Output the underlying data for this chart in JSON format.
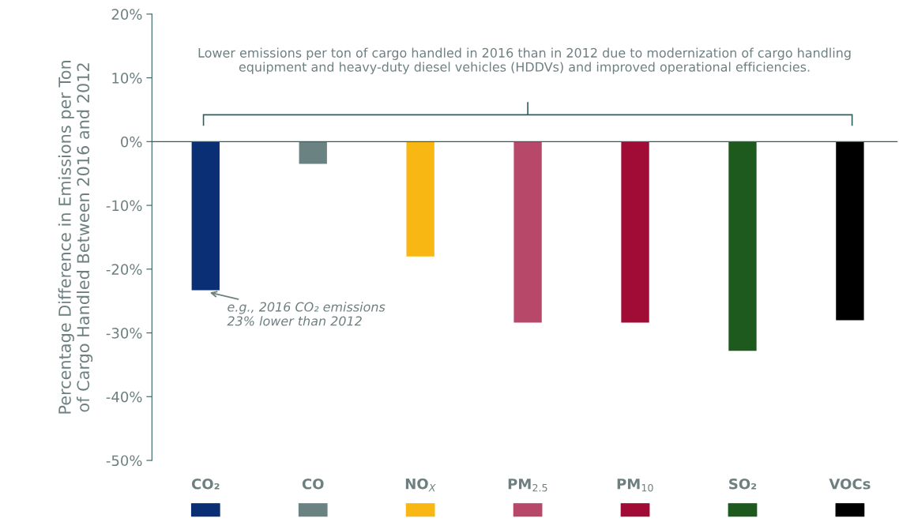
{
  "chart_data": {
    "type": "bar",
    "ylabel": "Percentage Difference in Emissions per Ton\nof Cargo Handled Between 2016 and 2012",
    "categories": [
      "CO₂",
      "CO",
      "NO$_{X}$",
      "PM$_{2.5}$",
      "PM$_{10}$",
      "SO₂",
      "VOCs"
    ],
    "values": [
      -23.3,
      -3.5,
      -18,
      -28.4,
      -28.4,
      -32.8,
      -28
    ],
    "colors": [
      "#0a2f75",
      "#6b8283",
      "#f8b712",
      "#b8486a",
      "#a00c36",
      "#1e5a1e",
      "#000000"
    ],
    "ylim": [
      -50,
      20
    ],
    "yticks": [
      {
        "value": -50,
        "label": "-50%"
      },
      {
        "value": -40,
        "label": "-40%"
      },
      {
        "value": -30,
        "label": "-30%"
      },
      {
        "value": -20,
        "label": "-20%"
      },
      {
        "value": -10,
        "label": "-10%"
      },
      {
        "value": 0,
        "label": "0%"
      },
      {
        "value": 10,
        "label": "10%"
      },
      {
        "value": 20,
        "label": "20%"
      }
    ],
    "annotations": [
      "Lower emissions per ton of cargo handled in 2016 than in 2012 due to modernization of cargo handling\nequipment and heavy-duty diesel vehicles (HDDVs) and improved operational efficiencies.",
      {
        "text": "e.g., 2016 CO₂ emissions\n23% lower than 2012",
        "x": "CO₂",
        "y": -23.3
      }
    ],
    "grid": false,
    "legend": false
  }
}
